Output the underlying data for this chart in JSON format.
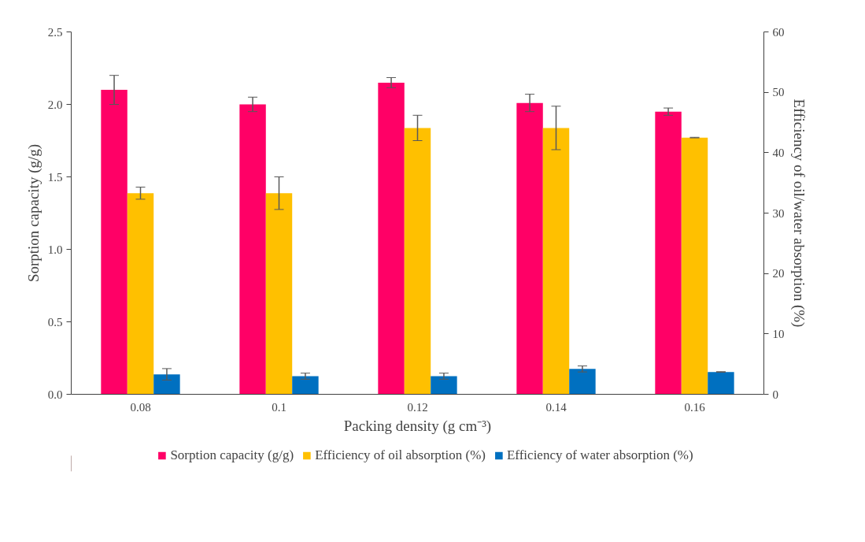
{
  "chart_data": {
    "type": "bar",
    "xlabel": "Packing density (g cm⁻³)",
    "ylabel": "Sorption capacity (g/g)",
    "y2label": "Efficiency of oil/water absorption (%)",
    "categories": [
      "0.08",
      "0.1",
      "0.12",
      "0.14",
      "0.16"
    ],
    "ylim": [
      0,
      2.5
    ],
    "yticks": [
      {
        "value": 0,
        "label": "0.0"
      },
      {
        "value": 0.5,
        "label": "0.5"
      },
      {
        "value": 1,
        "label": "1.0"
      },
      {
        "value": 1.5,
        "label": "1.5"
      },
      {
        "value": 2,
        "label": "2.0"
      },
      {
        "value": 2.5,
        "label": "2.5"
      }
    ],
    "y2lim": [
      0,
      60
    ],
    "y2ticks": [
      0,
      10,
      20,
      30,
      40,
      50,
      60
    ],
    "grid": false,
    "legend": "bottom",
    "series": [
      {
        "name": "Sorption capacity (g/g)",
        "color": "#ff0066",
        "values": [
          2.1,
          2.0,
          2.15,
          2.01,
          1.95
        ],
        "errors": [
          0.1,
          0.05,
          0.035,
          0.06,
          0.025
        ]
      },
      {
        "name": "Efficiency of oil absorption (%)",
        "color": "#ffc000",
        "axis": "y2",
        "values": [
          33.3,
          33.3,
          44.1,
          44.1,
          42.5
        ],
        "errors": [
          1.0,
          2.7,
          2.1,
          3.6,
          0.05
        ]
      },
      {
        "name": "Efficiency of water absorption (%)",
        "color": "#0070c0",
        "axis": "y2",
        "values": [
          3.3,
          3.0,
          3.0,
          4.2,
          3.7
        ],
        "errors": [
          0.95,
          0.5,
          0.5,
          0.5,
          0.05
        ]
      }
    ]
  }
}
